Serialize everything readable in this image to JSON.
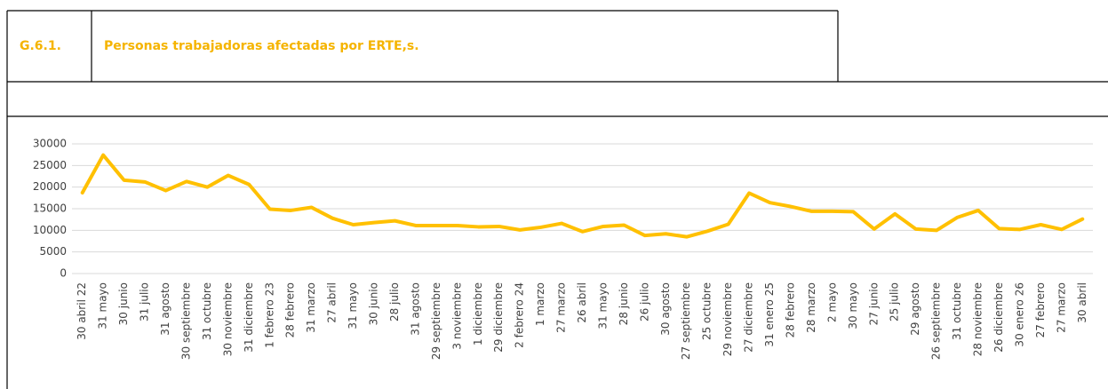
{
  "header": {
    "code": "G.6.1.",
    "title": "Personas trabajadoras afectadas por ERTE,s."
  },
  "chart_data": {
    "type": "line",
    "categories": [
      "30 abril 22",
      "31 mayo",
      "30 junio",
      "31 julio",
      "31 agosto",
      "30 septiembre",
      "31 octubre",
      "30 noviembre",
      "31 diciembre",
      "1 febrero 23",
      "28 febrero",
      "31 marzo",
      "27 abril",
      "31 mayo",
      "30 junio",
      "28 julio",
      "31 agosto",
      "29 septiembre",
      "3 noviembre",
      "1 diciembre",
      "29 diciembre",
      "2 febrero 24",
      "1 marzo",
      "27 marzo",
      "26 abril",
      "31 mayo",
      "28 junio",
      "26 julio",
      "30 agosto",
      "27 septiembre",
      "25 octubre",
      "29 noviembre",
      "27 diciembre",
      "31 enero 25",
      "28 febrero",
      "28 marzo",
      "2 mayo",
      "30 mayo",
      "27 junio",
      "25 julio",
      "29 agosto",
      "26 septiembre",
      "31 octubre",
      "28 noviembre",
      "26 diciembre",
      "30 enero 26",
      "27 febrero",
      "27 marzo",
      "30 abril"
    ],
    "values": [
      18700,
      27400,
      21600,
      21200,
      19200,
      21300,
      20000,
      22700,
      20600,
      14900,
      14600,
      15300,
      12800,
      11300,
      11800,
      12200,
      11100,
      11100,
      11100,
      10800,
      10900,
      10100,
      10700,
      11600,
      9700,
      10900,
      11200,
      8800,
      9200,
      8500,
      9800,
      11400,
      18600,
      16400,
      15500,
      14400,
      14400,
      14300,
      10300,
      13800,
      10300,
      10000,
      13000,
      14600,
      10400,
      10200,
      11300,
      10200,
      12600
    ],
    "color": "#ffc000",
    "ylim": [
      0,
      30000
    ],
    "yticks": [
      0,
      5000,
      10000,
      15000,
      20000,
      25000,
      30000
    ],
    "grid": true
  }
}
